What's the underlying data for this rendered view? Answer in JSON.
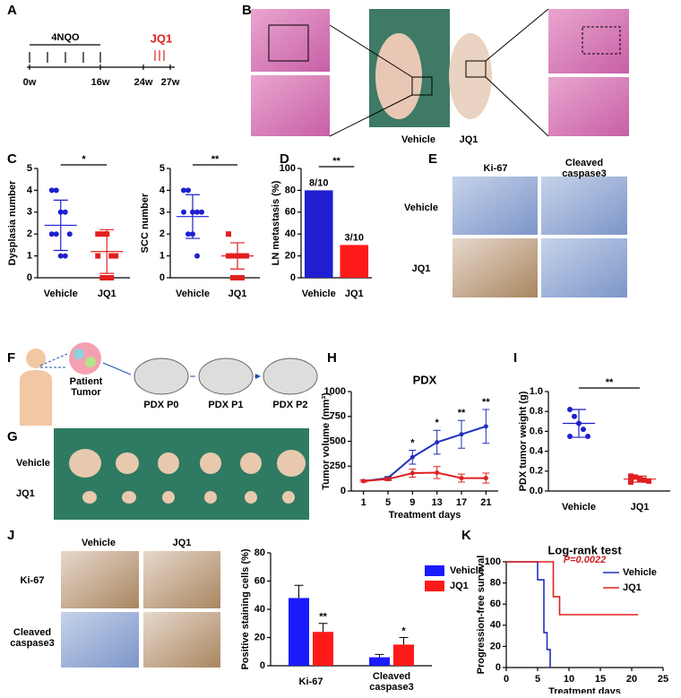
{
  "figure": {
    "panel_letters": [
      "A",
      "B",
      "C",
      "D",
      "E",
      "F",
      "G",
      "H",
      "I",
      "J",
      "K"
    ],
    "panel_a": {
      "treatment": "4NQO",
      "drug": "JQ1",
      "timepoints": [
        "0w",
        "16w",
        "24w",
        "27w"
      ]
    },
    "panel_b": {
      "labels": [
        "Vehicle",
        "JQ1"
      ]
    },
    "panel_e": {
      "columns": [
        "Ki-67",
        "Cleaved\ncaspase3"
      ],
      "rows": [
        "Vehicle",
        "JQ1"
      ]
    },
    "panel_f": {
      "source": "Patient\nTumor",
      "steps": [
        "PDX P0",
        "PDX P1",
        "PDX P2"
      ]
    },
    "panel_g": {
      "rows": [
        "Vehicle",
        "JQ1"
      ]
    },
    "panel_j": {
      "columns": [
        "Vehicle",
        "JQ1"
      ],
      "rows": [
        "Ki-67",
        "Cleaved\ncaspase3"
      ]
    }
  },
  "chart_data": [
    {
      "type": "dotplot",
      "y_label": "Dysplasia number",
      "categories": [
        "Vehicle",
        "JQ1"
      ],
      "groups": [
        {
          "color": "#1f1fd0",
          "marker": "circle",
          "points": [
            4,
            4,
            3,
            3,
            2,
            2,
            2,
            1,
            1
          ],
          "mean": 2.4,
          "sd": 1.15
        },
        {
          "color": "#e02020",
          "marker": "square",
          "points": [
            2,
            2,
            2,
            1,
            1,
            1,
            0,
            0,
            0
          ],
          "mean": 1.2,
          "sd": 1.0
        }
      ],
      "significance": "*",
      "ylim": [
        0,
        5
      ],
      "yticks": [
        0,
        1,
        2,
        3,
        4,
        5
      ]
    },
    {
      "type": "dotplot",
      "y_label": "SCC number",
      "categories": [
        "Vehicle",
        "JQ1"
      ],
      "groups": [
        {
          "color": "#1f1fd0",
          "marker": "circle",
          "points": [
            4,
            4,
            3,
            3,
            3,
            3,
            2,
            2,
            1
          ],
          "mean": 2.8,
          "sd": 1.0
        },
        {
          "color": "#e02020",
          "marker": "square",
          "points": [
            2,
            1,
            1,
            1,
            1,
            1,
            0,
            0,
            0
          ],
          "mean": 1.0,
          "sd": 0.6
        }
      ],
      "significance": "**",
      "ylim": [
        0,
        5
      ],
      "yticks": [
        0,
        1,
        2,
        3,
        4,
        5
      ]
    },
    {
      "type": "bar",
      "y_label": "LN metastasis (%)",
      "categories": [
        "Vehicle",
        "JQ1"
      ],
      "values": [
        80,
        30
      ],
      "value_labels": [
        "8/10",
        "3/10"
      ],
      "colors": [
        "#1f1fd0",
        "#ff1a1a"
      ],
      "significance": "**",
      "ylim": [
        0,
        100
      ],
      "yticks": [
        0,
        20,
        40,
        60,
        80,
        100
      ]
    },
    {
      "type": "line",
      "title": "PDX",
      "x_label": "Treatment days",
      "y_label": "Tumor volume (mm³)",
      "x": [
        1,
        5,
        9,
        13,
        17,
        21
      ],
      "series": [
        {
          "name": "Vehicle",
          "color": "#1f2fc0",
          "values": [
            100,
            130,
            340,
            490,
            570,
            650
          ],
          "errors": [
            10,
            15,
            70,
            120,
            140,
            170
          ]
        },
        {
          "name": "JQ1",
          "color": "#e02020",
          "values": [
            100,
            120,
            180,
            185,
            130,
            130
          ],
          "errors": [
            10,
            15,
            40,
            60,
            40,
            50
          ]
        }
      ],
      "significance": [
        null,
        null,
        "*",
        "*",
        "**",
        "**"
      ],
      "xlim": [
        -1,
        23
      ],
      "xticks": [
        1,
        5,
        9,
        13,
        17,
        21
      ],
      "ylim": [
        0,
        1000
      ],
      "yticks": [
        0,
        250,
        500,
        750,
        1000
      ]
    },
    {
      "type": "dotplot",
      "y_label": "PDX tumor weight (g)",
      "categories": [
        "Vehicle",
        "JQ1"
      ],
      "groups": [
        {
          "color": "#1f1fd0",
          "marker": "circle",
          "points": [
            0.82,
            0.75,
            0.68,
            0.62,
            0.55,
            0.55
          ],
          "mean": 0.68,
          "sd": 0.14
        },
        {
          "color": "#e02020",
          "marker": "square",
          "points": [
            0.15,
            0.14,
            0.12,
            0.11,
            0.1,
            0.09
          ],
          "mean": 0.12,
          "sd": 0.03
        }
      ],
      "significance": "**",
      "ylim": [
        0,
        1
      ],
      "yticks": [
        {
          "value": 0,
          "label": "0.0"
        },
        0.2,
        0.4,
        0.6,
        0.8,
        {
          "value": 1,
          "label": "1.0"
        }
      ]
    },
    {
      "type": "groupedbar",
      "y_label": "Positive staining cells (%)",
      "categories": [
        "Ki-67",
        "Cleaved\ncaspase3"
      ],
      "series": [
        {
          "name": "Vehicle",
          "color": "#1a1aff",
          "values": [
            48,
            6
          ],
          "errors": [
            9,
            2
          ]
        },
        {
          "name": "JQ1",
          "color": "#ff1a1a",
          "values": [
            24,
            15
          ],
          "errors": [
            6,
            5
          ],
          "significance": [
            "**",
            "*"
          ]
        }
      ],
      "ylim": [
        0,
        80
      ],
      "yticks": [
        0,
        20,
        40,
        60,
        80
      ]
    },
    {
      "type": "survival",
      "title": "Log-rank test",
      "annotation": "P=0.0022",
      "annotation_color": "#d02020",
      "x_label": "Treatment days",
      "y_label": "Progression-free survival",
      "series": [
        {
          "name": "Vehicle",
          "color": "#1f2fc0",
          "x": [
            0,
            5,
            5,
            6,
            6,
            6.5,
            6.5,
            7,
            7
          ],
          "y": [
            100,
            100,
            83,
            83,
            33,
            33,
            17,
            17,
            0
          ]
        },
        {
          "name": "JQ1",
          "color": "#e02020",
          "x": [
            0,
            7.5,
            7.5,
            8.5,
            8.5,
            21
          ],
          "y": [
            100,
            100,
            67,
            67,
            50,
            50
          ]
        }
      ],
      "xlim": [
        0,
        25
      ],
      "xticks": [
        0,
        5,
        10,
        15,
        20,
        25
      ],
      "ylim": [
        0,
        100
      ],
      "yticks": [
        0,
        20,
        40,
        60,
        80,
        100
      ]
    }
  ]
}
